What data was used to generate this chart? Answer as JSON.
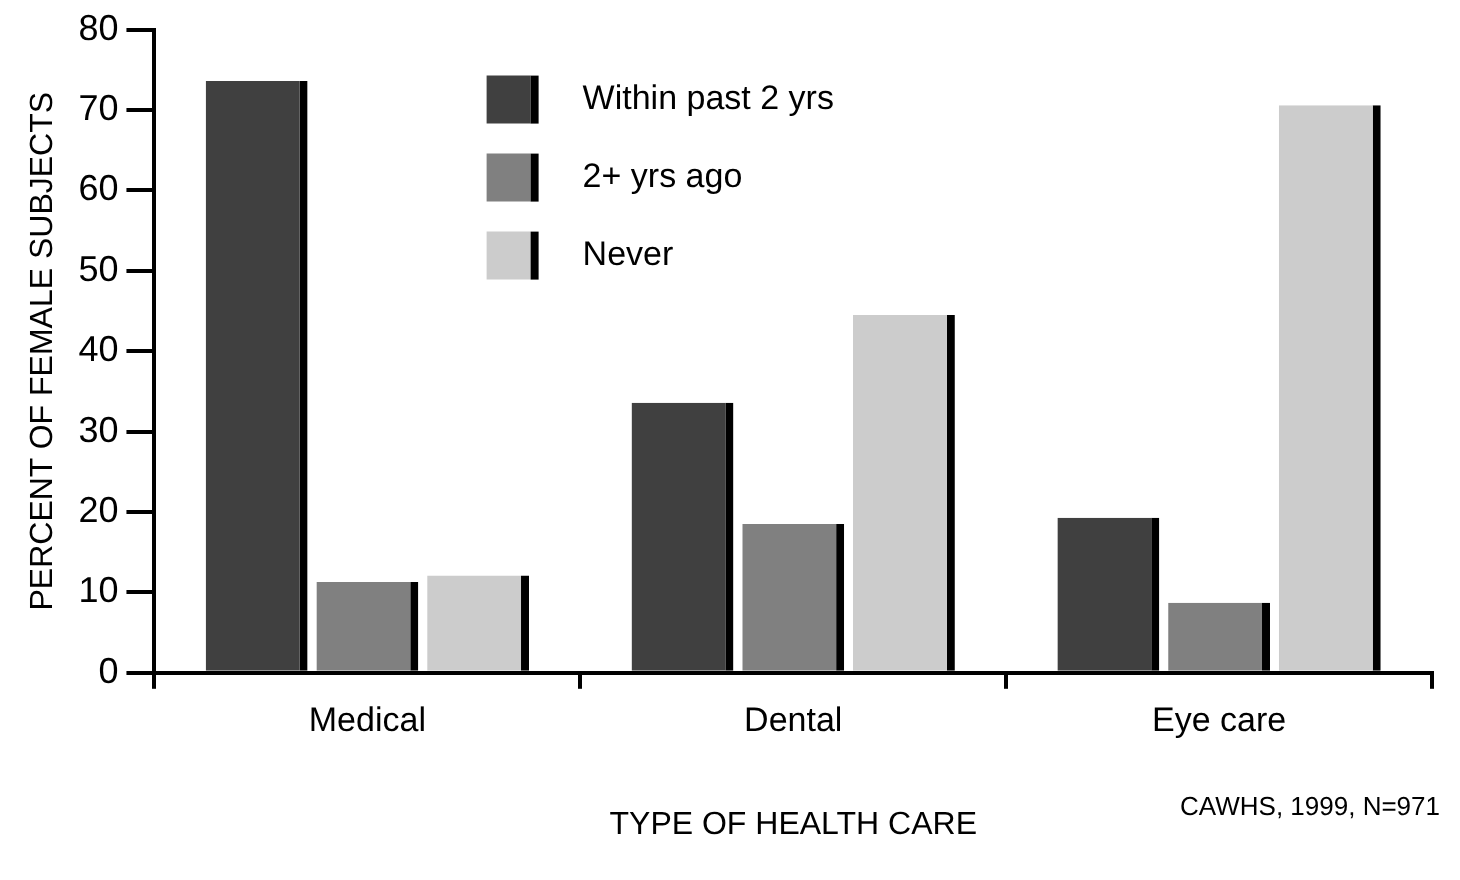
{
  "chart_data": {
    "type": "bar",
    "xlabel": "TYPE OF HEALTH CARE",
    "ylabel": "PERCENT OF FEMALE SUBJECTS",
    "categories": [
      "Medical",
      "Dental",
      "Eye care"
    ],
    "series": [
      {
        "name": "Within past 2 yrs",
        "color": "#404040",
        "values": [
          73.6,
          33.6,
          19.3
        ]
      },
      {
        "name": "2+ yrs ago",
        "color": "#808080",
        "values": [
          11.3,
          18.5,
          8.7
        ]
      },
      {
        "name": "Never",
        "color": "#cccccc",
        "values": [
          12.1,
          44.5,
          70.6
        ]
      }
    ],
    "ylim": [
      0,
      80
    ],
    "yticks": [
      0,
      10,
      20,
      30,
      40,
      50,
      60,
      70,
      80
    ],
    "grid": false,
    "legend": "top",
    "annotations": [
      "CAWHS, 1999, N=971"
    ]
  }
}
